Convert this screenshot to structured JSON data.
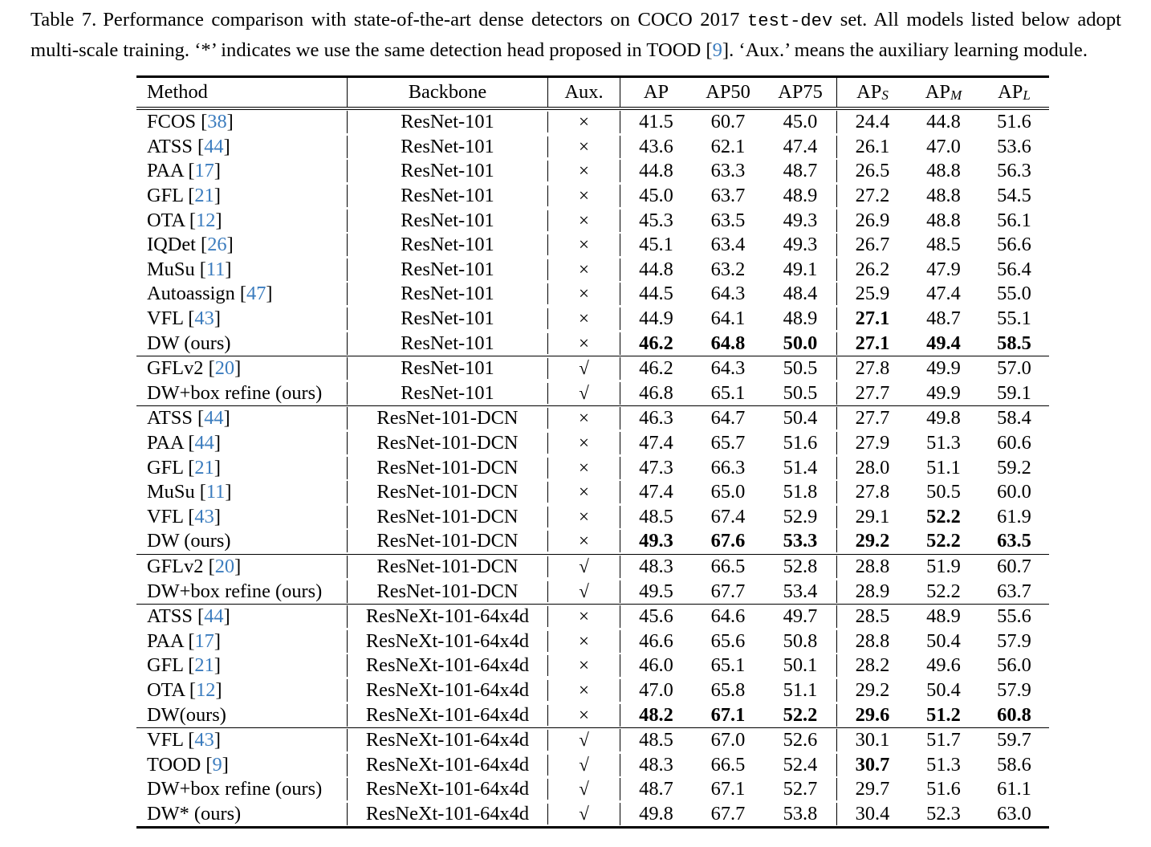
{
  "colors": {
    "citation": "#3b7cbe",
    "text": "#000000"
  },
  "caption": {
    "label": "Table 7.",
    "part1": "Performance comparison with state-of-the-art dense detectors on COCO 2017",
    "code": "test-dev",
    "part2": "set. All models listed below adopt multi-scale training. ‘*’ indicates we use the same detection head proposed in TOOD [",
    "cite": "9",
    "part3": "]. ‘Aux.’ means the auxiliary learning module."
  },
  "table": {
    "headers": [
      {
        "key": "method",
        "text": "Method",
        "sub": ""
      },
      {
        "key": "backbone",
        "text": "Backbone",
        "sub": ""
      },
      {
        "key": "aux",
        "text": "Aux.",
        "sub": ""
      },
      {
        "key": "ap",
        "text": "AP",
        "sub": ""
      },
      {
        "key": "ap50",
        "text": "AP50",
        "sub": ""
      },
      {
        "key": "ap75",
        "text": "AP75",
        "sub": ""
      },
      {
        "key": "ap-s",
        "text": "AP",
        "sub": "S"
      },
      {
        "key": "ap-m",
        "text": "AP",
        "sub": "M"
      },
      {
        "key": "ap-l",
        "text": "AP",
        "sub": "L"
      }
    ],
    "aux_symbols": {
      "no": "×",
      "yes": "√"
    },
    "groups": [
      {
        "rows": [
          {
            "method": "FCOS",
            "cite": "38",
            "backbone": "ResNet-101",
            "aux": "×",
            "values": [
              "41.5",
              "60.7",
              "45.0",
              "24.4",
              "44.8",
              "51.6"
            ],
            "bold": [
              false,
              false,
              false,
              false,
              false,
              false
            ]
          },
          {
            "method": "ATSS",
            "cite": "44",
            "backbone": "ResNet-101",
            "aux": "×",
            "values": [
              "43.6",
              "62.1",
              "47.4",
              "26.1",
              "47.0",
              "53.6"
            ],
            "bold": [
              false,
              false,
              false,
              false,
              false,
              false
            ]
          },
          {
            "method": "PAA",
            "cite": "17",
            "backbone": "ResNet-101",
            "aux": "×",
            "values": [
              "44.8",
              "63.3",
              "48.7",
              "26.5",
              "48.8",
              "56.3"
            ],
            "bold": [
              false,
              false,
              false,
              false,
              false,
              false
            ]
          },
          {
            "method": "GFL",
            "cite": "21",
            "backbone": "ResNet-101",
            "aux": "×",
            "values": [
              "45.0",
              "63.7",
              "48.9",
              "27.2",
              "48.8",
              "54.5"
            ],
            "bold": [
              false,
              false,
              false,
              false,
              false,
              false
            ]
          },
          {
            "method": "OTA",
            "cite": "12",
            "backbone": "ResNet-101",
            "aux": "×",
            "values": [
              "45.3",
              "63.5",
              "49.3",
              "26.9",
              "48.8",
              "56.1"
            ],
            "bold": [
              false,
              false,
              false,
              false,
              false,
              false
            ]
          },
          {
            "method": "IQDet",
            "cite": "26",
            "backbone": "ResNet-101",
            "aux": "×",
            "values": [
              "45.1",
              "63.4",
              "49.3",
              "26.7",
              "48.5",
              "56.6"
            ],
            "bold": [
              false,
              false,
              false,
              false,
              false,
              false
            ]
          },
          {
            "method": "MuSu",
            "cite": "11",
            "backbone": "ResNet-101",
            "aux": "×",
            "values": [
              "44.8",
              "63.2",
              "49.1",
              "26.2",
              "47.9",
              "56.4"
            ],
            "bold": [
              false,
              false,
              false,
              false,
              false,
              false
            ]
          },
          {
            "method": "Autoassign",
            "cite": "47",
            "backbone": "ResNet-101",
            "aux": "×",
            "values": [
              "44.5",
              "64.3",
              "48.4",
              "25.9",
              "47.4",
              "55.0"
            ],
            "bold": [
              false,
              false,
              false,
              false,
              false,
              false
            ]
          },
          {
            "method": "VFL",
            "cite": "43",
            "backbone": "ResNet-101",
            "aux": "×",
            "values": [
              "44.9",
              "64.1",
              "48.9",
              "27.1",
              "48.7",
              "55.1"
            ],
            "bold": [
              false,
              false,
              false,
              true,
              false,
              false
            ]
          },
          {
            "method": "DW (ours)",
            "cite": null,
            "backbone": "ResNet-101",
            "aux": "×",
            "values": [
              "46.2",
              "64.8",
              "50.0",
              "27.1",
              "49.4",
              "58.5"
            ],
            "bold": [
              true,
              true,
              true,
              true,
              true,
              true
            ]
          }
        ]
      },
      {
        "rows": [
          {
            "method": "GFLv2",
            "cite": "20",
            "backbone": "ResNet-101",
            "aux": "√",
            "values": [
              "46.2",
              "64.3",
              "50.5",
              "27.8",
              "49.9",
              "57.0"
            ],
            "bold": [
              false,
              false,
              false,
              false,
              false,
              false
            ]
          },
          {
            "method": "DW+box refine (ours)",
            "cite": null,
            "backbone": "ResNet-101",
            "aux": "√",
            "values": [
              "46.8",
              "65.1",
              "50.5",
              "27.7",
              "49.9",
              "59.1"
            ],
            "bold": [
              false,
              false,
              false,
              false,
              false,
              false
            ]
          }
        ]
      },
      {
        "rows": [
          {
            "method": "ATSS",
            "cite": "44",
            "backbone": "ResNet-101-DCN",
            "aux": "×",
            "values": [
              "46.3",
              "64.7",
              "50.4",
              "27.7",
              "49.8",
              "58.4"
            ],
            "bold": [
              false,
              false,
              false,
              false,
              false,
              false
            ]
          },
          {
            "method": "PAA",
            "cite": "44",
            "backbone": "ResNet-101-DCN",
            "aux": "×",
            "values": [
              "47.4",
              "65.7",
              "51.6",
              "27.9",
              "51.3",
              "60.6"
            ],
            "bold": [
              false,
              false,
              false,
              false,
              false,
              false
            ]
          },
          {
            "method": "GFL",
            "cite": "21",
            "backbone": "ResNet-101-DCN",
            "aux": "×",
            "values": [
              "47.3",
              "66.3",
              "51.4",
              "28.0",
              "51.1",
              "59.2"
            ],
            "bold": [
              false,
              false,
              false,
              false,
              false,
              false
            ]
          },
          {
            "method": "MuSu",
            "cite": "11",
            "backbone": "ResNet-101-DCN",
            "aux": "×",
            "values": [
              "47.4",
              "65.0",
              "51.8",
              "27.8",
              "50.5",
              "60.0"
            ],
            "bold": [
              false,
              false,
              false,
              false,
              false,
              false
            ]
          },
          {
            "method": "VFL",
            "cite": "43",
            "backbone": "ResNet-101-DCN",
            "aux": "×",
            "values": [
              "48.5",
              "67.4",
              "52.9",
              "29.1",
              "52.2",
              "61.9"
            ],
            "bold": [
              false,
              false,
              false,
              false,
              true,
              false
            ]
          },
          {
            "method": "DW (ours)",
            "cite": null,
            "backbone": "ResNet-101-DCN",
            "aux": "×",
            "values": [
              "49.3",
              "67.6",
              "53.3",
              "29.2",
              "52.2",
              "63.5"
            ],
            "bold": [
              true,
              true,
              true,
              true,
              true,
              true
            ]
          }
        ]
      },
      {
        "rows": [
          {
            "method": "GFLv2",
            "cite": "20",
            "backbone": "ResNet-101-DCN",
            "aux": "√",
            "values": [
              "48.3",
              "66.5",
              "52.8",
              "28.8",
              "51.9",
              "60.7"
            ],
            "bold": [
              false,
              false,
              false,
              false,
              false,
              false
            ]
          },
          {
            "method": "DW+box refine (ours)",
            "cite": null,
            "backbone": "ResNet-101-DCN",
            "aux": "√",
            "values": [
              "49.5",
              "67.7",
              "53.4",
              "28.9",
              "52.2",
              "63.7"
            ],
            "bold": [
              false,
              false,
              false,
              false,
              false,
              false
            ]
          }
        ]
      },
      {
        "rows": [
          {
            "method": "ATSS",
            "cite": "44",
            "backbone": "ResNeXt-101-64x4d",
            "aux": "×",
            "values": [
              "45.6",
              "64.6",
              "49.7",
              "28.5",
              "48.9",
              "55.6"
            ],
            "bold": [
              false,
              false,
              false,
              false,
              false,
              false
            ]
          },
          {
            "method": "PAA",
            "cite": "17",
            "backbone": "ResNeXt-101-64x4d",
            "aux": "×",
            "values": [
              "46.6",
              "65.6",
              "50.8",
              "28.8",
              "50.4",
              "57.9"
            ],
            "bold": [
              false,
              false,
              false,
              false,
              false,
              false
            ]
          },
          {
            "method": "GFL",
            "cite": "21",
            "backbone": "ResNeXt-101-64x4d",
            "aux": "×",
            "values": [
              "46.0",
              "65.1",
              "50.1",
              "28.2",
              "49.6",
              "56.0"
            ],
            "bold": [
              false,
              false,
              false,
              false,
              false,
              false
            ]
          },
          {
            "method": "OTA",
            "cite": "12",
            "backbone": "ResNeXt-101-64x4d",
            "aux": "×",
            "values": [
              "47.0",
              "65.8",
              "51.1",
              "29.2",
              "50.4",
              "57.9"
            ],
            "bold": [
              false,
              false,
              false,
              false,
              false,
              false
            ]
          },
          {
            "method": "DW(ours)",
            "cite": null,
            "backbone": "ResNeXt-101-64x4d",
            "aux": "×",
            "values": [
              "48.2",
              "67.1",
              "52.2",
              "29.6",
              "51.2",
              "60.8"
            ],
            "bold": [
              true,
              true,
              true,
              true,
              true,
              true
            ]
          }
        ]
      },
      {
        "rows": [
          {
            "method": "VFL",
            "cite": "43",
            "backbone": "ResNeXt-101-64x4d",
            "aux": "√",
            "values": [
              "48.5",
              "67.0",
              "52.6",
              "30.1",
              "51.7",
              "59.7"
            ],
            "bold": [
              false,
              false,
              false,
              false,
              false,
              false
            ]
          },
          {
            "method": "TOOD",
            "cite": "9",
            "backbone": "ResNeXt-101-64x4d",
            "aux": "√",
            "values": [
              "48.3",
              "66.5",
              "52.4",
              "30.7",
              "51.3",
              "58.6"
            ],
            "bold": [
              false,
              false,
              false,
              true,
              false,
              false
            ]
          },
          {
            "method": "DW+box refine (ours)",
            "cite": null,
            "backbone": "ResNeXt-101-64x4d",
            "aux": "√",
            "values": [
              "48.7",
              "67.1",
              "52.7",
              "29.7",
              "51.6",
              "61.1"
            ],
            "bold": [
              false,
              false,
              false,
              false,
              false,
              false
            ]
          },
          {
            "method": "DW* (ours)",
            "cite": null,
            "backbone": "ResNeXt-101-64x4d",
            "aux": "√",
            "values": [
              "49.8",
              "67.7",
              "53.8",
              "30.4",
              "52.3",
              "63.0"
            ],
            "bold": [
              false,
              false,
              false,
              false,
              false,
              false
            ]
          }
        ]
      }
    ]
  }
}
